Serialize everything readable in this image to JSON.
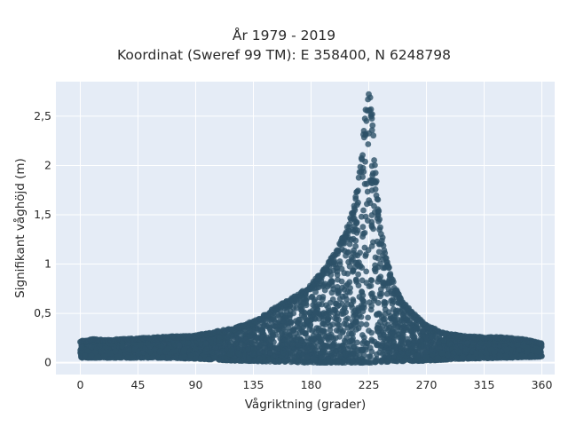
{
  "chart_data": {
    "type": "scatter",
    "title": "År 1979 - 2019",
    "subtitle": "Koordinat (Sweref 99 TM): E 358400, N 6248798",
    "xlabel": "Vågriktning (grader)",
    "ylabel": "Signifikant våghöjd (m)",
    "xlim": [
      -19,
      370
    ],
    "ylim": [
      -0.12,
      2.85
    ],
    "x_ticks": [
      0,
      45,
      90,
      135,
      180,
      225,
      270,
      315,
      360
    ],
    "x_tick_labels": [
      "0",
      "45",
      "90",
      "135",
      "180",
      "225",
      "270",
      "315",
      "360"
    ],
    "y_ticks": [
      0,
      0.5,
      1,
      1.5,
      2,
      2.5
    ],
    "y_tick_labels": [
      "0",
      "0,5",
      "1",
      "1,5",
      "2",
      "2,5"
    ],
    "grid": true,
    "colors": {
      "marker": "#2d5168",
      "plot_bg": "#e5ecf6",
      "grid": "#ffffff"
    },
    "upper_envelope": [
      [
        0,
        0.22
      ],
      [
        10,
        0.24
      ],
      [
        20,
        0.23
      ],
      [
        30,
        0.24
      ],
      [
        45,
        0.25
      ],
      [
        60,
        0.26
      ],
      [
        75,
        0.27
      ],
      [
        90,
        0.28
      ],
      [
        100,
        0.3
      ],
      [
        110,
        0.33
      ],
      [
        120,
        0.35
      ],
      [
        130,
        0.4
      ],
      [
        140,
        0.45
      ],
      [
        150,
        0.55
      ],
      [
        160,
        0.62
      ],
      [
        170,
        0.7
      ],
      [
        180,
        0.8
      ],
      [
        190,
        0.95
      ],
      [
        200,
        1.15
      ],
      [
        205,
        1.3
      ],
      [
        210,
        1.45
      ],
      [
        215,
        1.7
      ],
      [
        218,
        1.95
      ],
      [
        220,
        2.2
      ],
      [
        222,
        2.5
      ],
      [
        224,
        2.72
      ],
      [
        226,
        2.73
      ],
      [
        228,
        2.5
      ],
      [
        230,
        2.0
      ],
      [
        233,
        1.55
      ],
      [
        236,
        1.25
      ],
      [
        240,
        1.0
      ],
      [
        245,
        0.8
      ],
      [
        250,
        0.65
      ],
      [
        260,
        0.5
      ],
      [
        270,
        0.38
      ],
      [
        285,
        0.3
      ],
      [
        300,
        0.27
      ],
      [
        315,
        0.26
      ],
      [
        330,
        0.26
      ],
      [
        345,
        0.24
      ],
      [
        360,
        0.2
      ]
    ],
    "lower_envelope": [
      [
        0,
        0.05
      ],
      [
        30,
        0.05
      ],
      [
        60,
        0.05
      ],
      [
        90,
        0.04
      ],
      [
        120,
        0.02
      ],
      [
        150,
        0.01
      ],
      [
        180,
        0.0
      ],
      [
        210,
        0.0
      ],
      [
        225,
        0.0
      ],
      [
        240,
        0.01
      ],
      [
        270,
        0.02
      ],
      [
        300,
        0.04
      ],
      [
        330,
        0.05
      ],
      [
        360,
        0.06
      ]
    ]
  }
}
